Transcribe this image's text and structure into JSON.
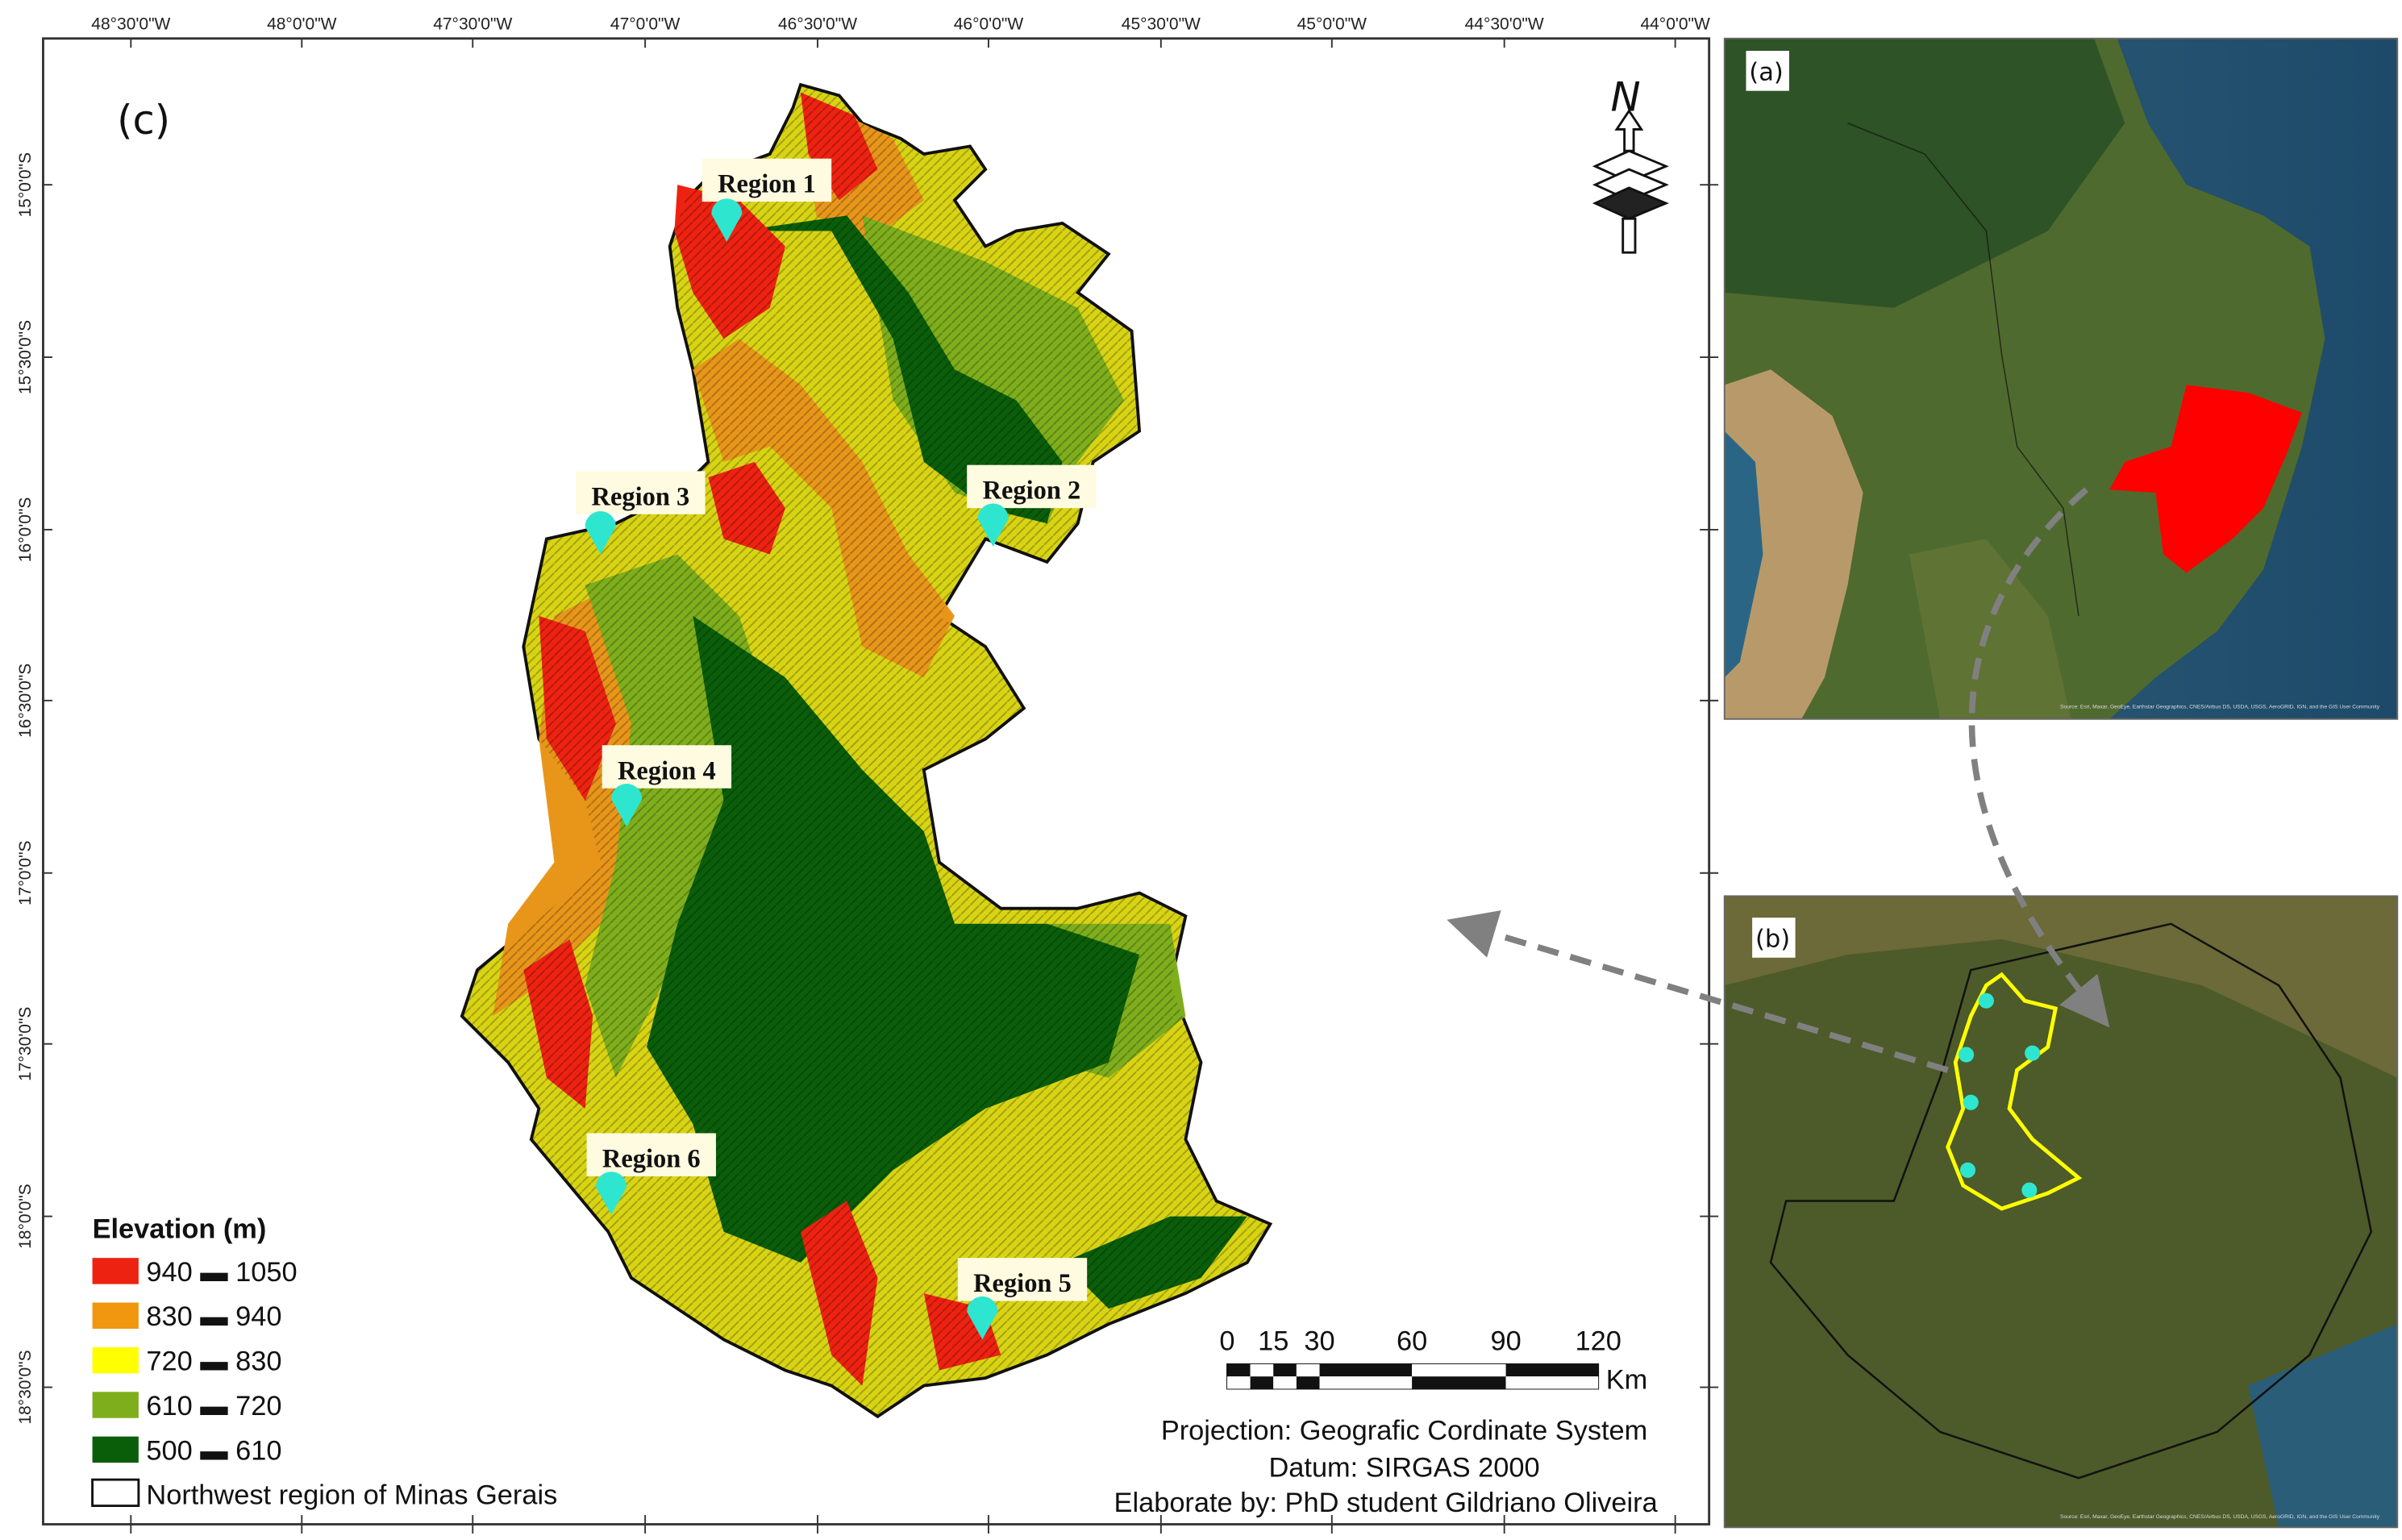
{
  "main_map": {
    "panel_label": "(c)",
    "longitude_ticks": [
      "48°30'0\"W",
      "48°0'0\"W",
      "47°30'0\"W",
      "47°0'0\"W",
      "46°30'0\"W",
      "46°0'0\"W",
      "45°30'0\"W",
      "45°0'0\"W",
      "44°30'0\"W",
      "44°0'0\"W"
    ],
    "latitude_ticks": [
      "15°0'0\"S",
      "15°30'0\"S",
      "16°0'0\"S",
      "16°30'0\"S",
      "17°0'0\"S",
      "17°30'0\"S",
      "18°0'0\"S",
      "18°30'0\"S"
    ],
    "regions": [
      "Region 1",
      "Region 2",
      "Region 3",
      "Region 4",
      "Region 5",
      "Region 6"
    ],
    "marker_color": "#2ee6d0",
    "north_label": "N",
    "legend": {
      "title": "Elevation (m)",
      "classes": [
        {
          "label": "940 ▬ 1050",
          "color": "#ee2211"
        },
        {
          "label": "830 ▬ 940",
          "color": "#f0960f"
        },
        {
          "label": "720 ▬ 830",
          "color": "#ffff00"
        },
        {
          "label": "610 ▬ 720",
          "color": "#7fae1c"
        },
        {
          "label": "500 ▬ 610",
          "color": "#0a5e0a"
        }
      ],
      "boundary_label": "Northwest region of Minas Gerais"
    },
    "scale_bar": {
      "ticks": [
        "0",
        "15",
        "30",
        "60",
        "90",
        "120"
      ],
      "unit": "Km"
    },
    "projection": "Projection: Geografic Cordinate System",
    "datum": "Datum: SIRGAS 2000",
    "author": "Elaborate by: PhD student Gildriano Oliveira"
  },
  "inset_a": {
    "panel_label": "(a)",
    "highlight_color": "#ff0000",
    "attribution": "Source: Esri, Maxar, GeoEye, Earthstar Geographics, CNES/Airbus DS, USDA, USGS, AeroGRID, IGN, and the GIS User Community"
  },
  "inset_b": {
    "panel_label": "(b)",
    "outline_color": "#ffff00",
    "attribution": "Source: Esri, Maxar, GeoEye, Earthstar Geographics, CNES/Airbus DS, USDA, USGS, AeroGRID, IGN, and the GIS User Community"
  }
}
